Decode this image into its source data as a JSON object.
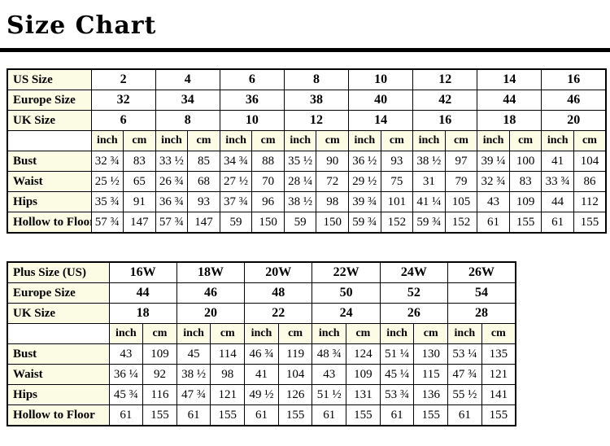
{
  "page": {
    "title": "Size Chart"
  },
  "colors": {
    "label_bg": "#FCFCE4",
    "border": "#000000",
    "background": "#FFFFFF"
  },
  "tables": [
    {
      "id": "table-standard",
      "name": "standard-size-table",
      "label_col_width": 103,
      "pairs": 8,
      "unit_headers": [
        "inch",
        "cm"
      ],
      "size_rows": [
        {
          "label": "US Size",
          "values": [
            "2",
            "4",
            "6",
            "8",
            "10",
            "12",
            "14",
            "16"
          ]
        },
        {
          "label": "Europe Size",
          "values": [
            "32",
            "34",
            "36",
            "38",
            "40",
            "42",
            "44",
            "46"
          ]
        },
        {
          "label": "UK Size",
          "values": [
            "6",
            "8",
            "10",
            "12",
            "14",
            "16",
            "18",
            "20"
          ]
        }
      ],
      "measure_rows": [
        {
          "label": "Bust",
          "values": [
            "32 ¾",
            "83",
            "33 ½",
            "85",
            "34 ¾",
            "88",
            "35 ½",
            "90",
            "36 ½",
            "93",
            "38 ½",
            "97",
            "39 ¼",
            "100",
            "41",
            "104"
          ]
        },
        {
          "label": "Waist",
          "values": [
            "25 ½",
            "65",
            "26 ¾",
            "68",
            "27 ½",
            "70",
            "28 ¼",
            "72",
            "29 ½",
            "75",
            "31",
            "79",
            "32 ¾",
            "83",
            "33 ¾",
            "86"
          ]
        },
        {
          "label": "Hips",
          "values": [
            "35 ¾",
            "91",
            "36 ¾",
            "93",
            "37 ¾",
            "96",
            "38 ½",
            "98",
            "39 ¾",
            "101",
            "41 ¼",
            "105",
            "43",
            "109",
            "44",
            "112"
          ]
        },
        {
          "label": "Hollow to Floor",
          "values": [
            "57 ¾",
            "147",
            "57 ¾",
            "147",
            "59",
            "150",
            "59",
            "150",
            "59 ¾",
            "152",
            "59 ¾",
            "152",
            "61",
            "155",
            "61",
            "155"
          ]
        }
      ]
    },
    {
      "id": "table-plus",
      "name": "plus-size-table",
      "label_col_width": 125,
      "pairs": 6,
      "unit_headers": [
        "inch",
        "cm"
      ],
      "size_rows": [
        {
          "label": "Plus Size (US)",
          "values": [
            "16W",
            "18W",
            "20W",
            "22W",
            "24W",
            "26W"
          ]
        },
        {
          "label": "Europe Size",
          "values": [
            "44",
            "46",
            "48",
            "50",
            "52",
            "54"
          ]
        },
        {
          "label": "UK Size",
          "values": [
            "18",
            "20",
            "22",
            "24",
            "26",
            "28"
          ]
        }
      ],
      "measure_rows": [
        {
          "label": "Bust",
          "values": [
            "43",
            "109",
            "45",
            "114",
            "46 ¾",
            "119",
            "48 ¾",
            "124",
            "51 ¼",
            "130",
            "53 ¼",
            "135"
          ]
        },
        {
          "label": "Waist",
          "values": [
            "36 ¼",
            "92",
            "38 ½",
            "98",
            "41",
            "104",
            "43",
            "109",
            "45 ¼",
            "115",
            "47 ¾",
            "121"
          ]
        },
        {
          "label": "Hips",
          "values": [
            "45 ¾",
            "116",
            "47 ¾",
            "121",
            "49 ½",
            "126",
            "51 ½",
            "131",
            "53 ¾",
            "136",
            "55 ½",
            "141"
          ]
        },
        {
          "label": "Hollow to Floor",
          "values": [
            "61",
            "155",
            "61",
            "155",
            "61",
            "155",
            "61",
            "155",
            "61",
            "155",
            "61",
            "155"
          ]
        }
      ]
    }
  ]
}
